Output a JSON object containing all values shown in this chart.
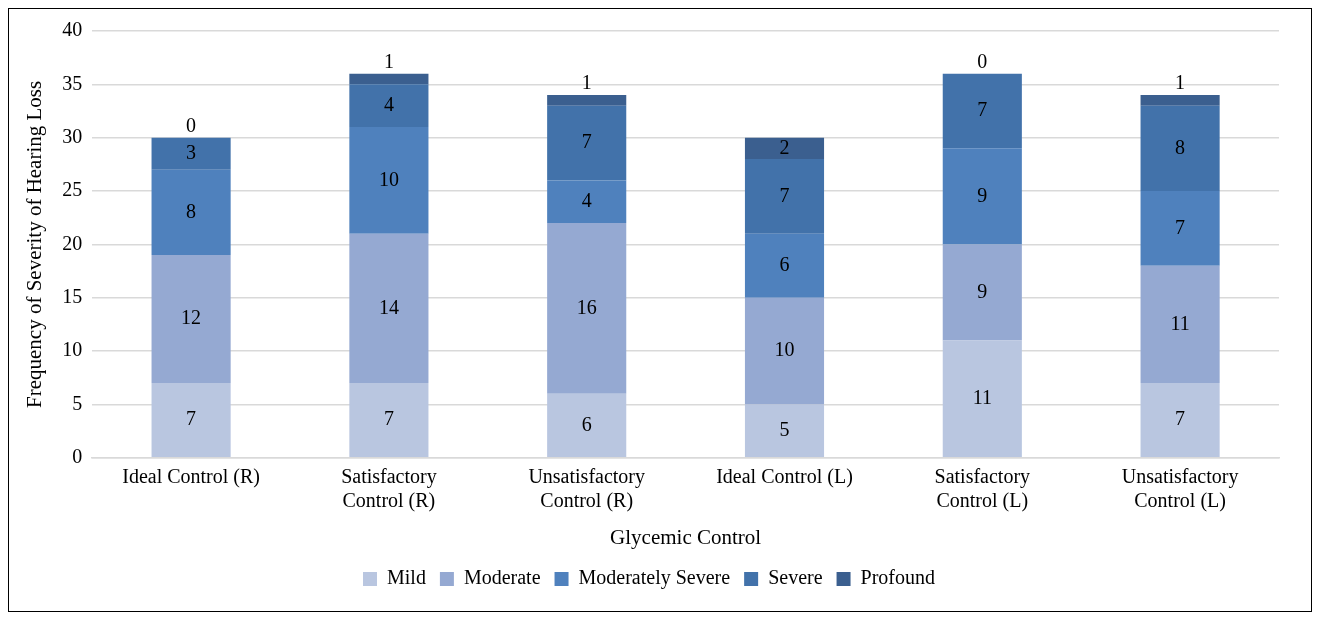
{
  "chart_data": {
    "type": "bar",
    "stacked": true,
    "xlabel": "Glycemic Control",
    "ylabel": "Frequency of Severity of Hearing Loss",
    "categories": [
      "Ideal Control (R)",
      "Satisfactory Control (R)",
      "Unsatisfactory Control (R)",
      "Ideal Control (L)",
      "Satisfactory Control (L)",
      "Unsatisfactory Control (L)"
    ],
    "series": [
      {
        "name": "Mild",
        "color": "#b9c6e0",
        "values": [
          7,
          7,
          6,
          5,
          11,
          7
        ]
      },
      {
        "name": "Moderate",
        "color": "#95a9d2",
        "values": [
          12,
          14,
          16,
          10,
          9,
          11
        ]
      },
      {
        "name": "Moderately Severe",
        "color": "#4f81bd",
        "values": [
          8,
          10,
          4,
          6,
          9,
          7
        ]
      },
      {
        "name": "Severe",
        "color": "#4272aa",
        "values": [
          3,
          4,
          7,
          7,
          7,
          8
        ]
      },
      {
        "name": "Profound",
        "color": "#3b5f8f",
        "values": [
          0,
          1,
          1,
          2,
          0,
          1
        ]
      }
    ],
    "ylim": [
      0,
      40
    ],
    "yticks": [
      0,
      5,
      10,
      15,
      20,
      25,
      30,
      35,
      40
    ],
    "grid": "y",
    "legend": "bottom",
    "data_labels": true
  }
}
